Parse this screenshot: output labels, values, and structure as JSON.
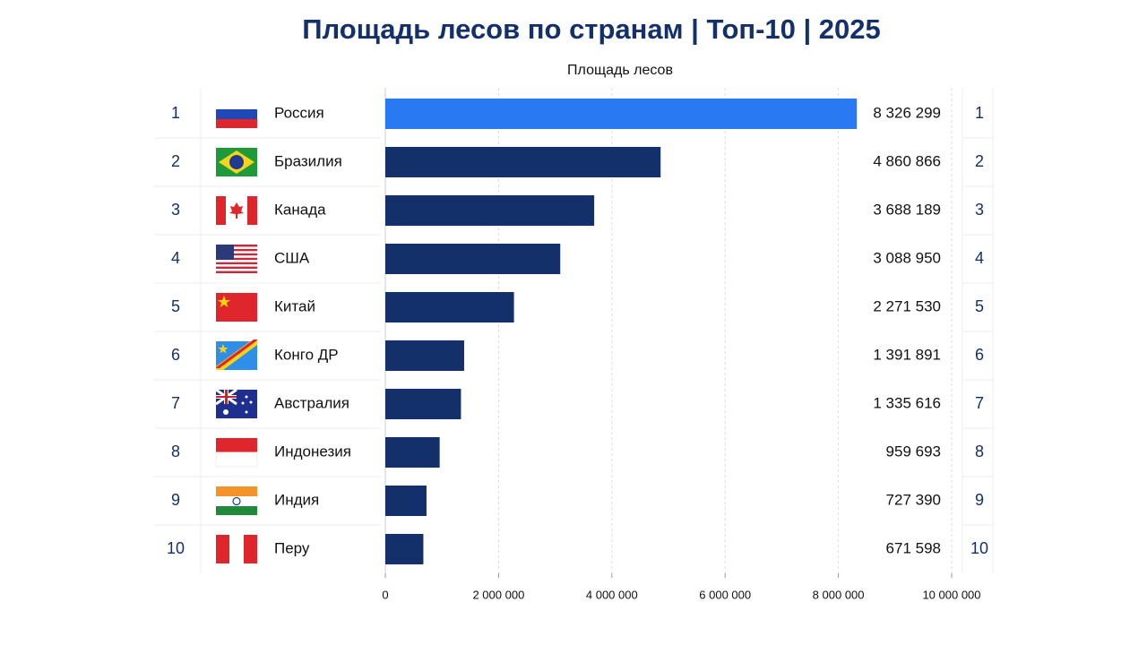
{
  "chart_data": {
    "type": "bar",
    "orientation": "horizontal",
    "title": "Площадь лесов по странам | Топ-10 | 2025",
    "x_label": "Площадь лесов",
    "ranks": [
      1,
      2,
      3,
      4,
      5,
      6,
      7,
      8,
      9,
      10
    ],
    "categories": [
      "Россия",
      "Бразилия",
      "Канада",
      "США",
      "Китай",
      "Конго ДР",
      "Австралия",
      "Индонезия",
      "Индия",
      "Перу"
    ],
    "values": [
      8326299,
      4860866,
      3688189,
      3088950,
      2271530,
      1391891,
      1335616,
      959693,
      727390,
      671598
    ],
    "value_labels": [
      "8 326 299",
      "4 860 866",
      "3 688 189",
      "3 088 950",
      "2 271 530",
      "1 391 891",
      "1 335 616",
      "959 693",
      "727 390",
      "671 598"
    ],
    "colors": [
      "#2979f2",
      "#14306b",
      "#14306b",
      "#14306b",
      "#14306b",
      "#14306b",
      "#14306b",
      "#14306b",
      "#14306b",
      "#14306b"
    ],
    "xlim": [
      0,
      10000000
    ],
    "xticks": [
      0,
      {
        "value": 2000000,
        "label": "2 000 000"
      },
      {
        "value": 4000000,
        "label": "4 000 000"
      },
      {
        "value": 6000000,
        "label": "6 000 000"
      },
      {
        "value": 8000000,
        "label": "8 000 000"
      },
      {
        "value": 10000000,
        "label": "10 000 000"
      }
    ],
    "grid": true
  }
}
